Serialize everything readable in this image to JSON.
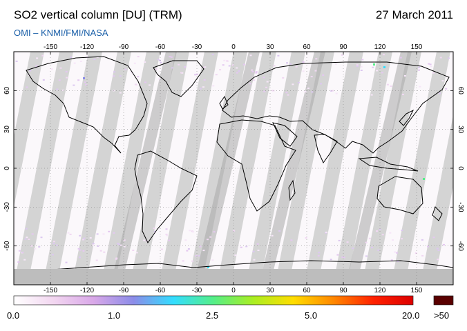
{
  "header": {
    "title": "SO2 vertical column [DU] (TRM)",
    "date": "27 March 2011",
    "subtitle": "OMI  –  KNMI/FMI/NASA"
  },
  "map": {
    "projection": "equirectangular",
    "lon_ticks": [
      "-150",
      "-120",
      "-90",
      "-60",
      "-30",
      "0",
      "30",
      "60",
      "90",
      "120",
      "150"
    ],
    "lat_ticks": [
      "60",
      "30",
      "0",
      "-30",
      "-60"
    ],
    "no_data_color": "#d4d4d4",
    "polar_no_data_color": "#bdbdbd",
    "gridlines": true
  },
  "colorbar": {
    "labels": [
      "0.0",
      "1.0",
      "2.5",
      "5.0",
      "20.0"
    ],
    "overflow_label": ">50",
    "colors": [
      "#ffffff",
      "#f2d6f0",
      "#d9a8e8",
      "#8c8ce8",
      "#33ddff",
      "#55ee88",
      "#aaee22",
      "#ffdd00",
      "#ff8800",
      "#ff2200",
      "#dd0000"
    ],
    "overflow_color": "#5a0000"
  }
}
